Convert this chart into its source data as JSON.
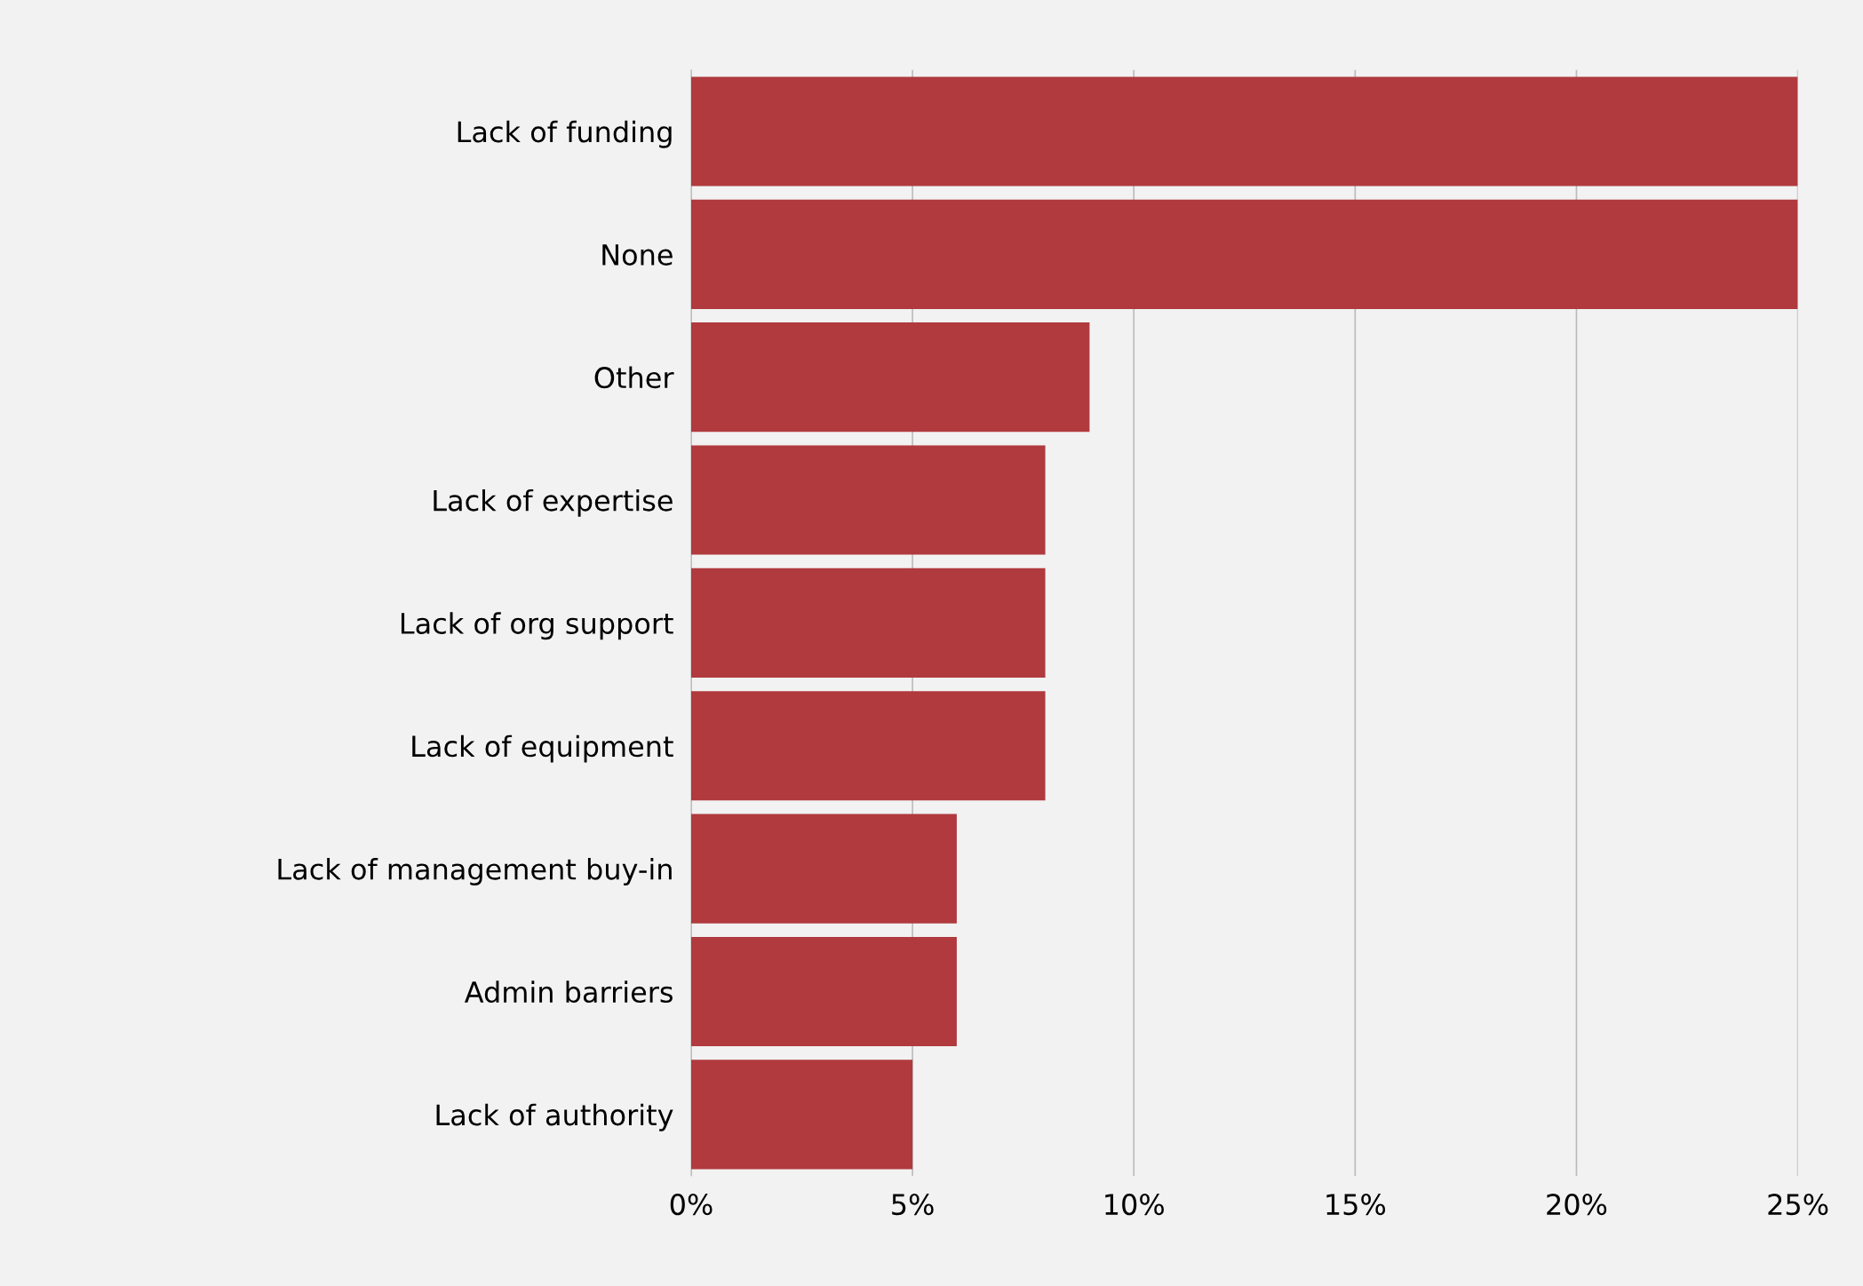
{
  "chart_data": {
    "type": "bar",
    "orientation": "horizontal",
    "categories": [
      "Lack of funding",
      "None",
      "Other",
      "Lack of expertise",
      "Lack of org support",
      "Lack of equipment",
      "Lack of management buy-in",
      "Admin barriers",
      "Lack of authority"
    ],
    "values": [
      25,
      25,
      9,
      8,
      8,
      8,
      6,
      6,
      5
    ],
    "color": "#b03a3e",
    "xlim": [
      0,
      25
    ],
    "xticks": [
      {
        "value": 0,
        "label": "0%"
      },
      {
        "value": 5,
        "label": "5%"
      },
      {
        "value": 10,
        "label": "10%"
      },
      {
        "value": 15,
        "label": "15%"
      },
      {
        "value": 20,
        "label": "20%"
      },
      {
        "value": 25,
        "label": "25%"
      }
    ],
    "grid": "x",
    "legend": false
  }
}
